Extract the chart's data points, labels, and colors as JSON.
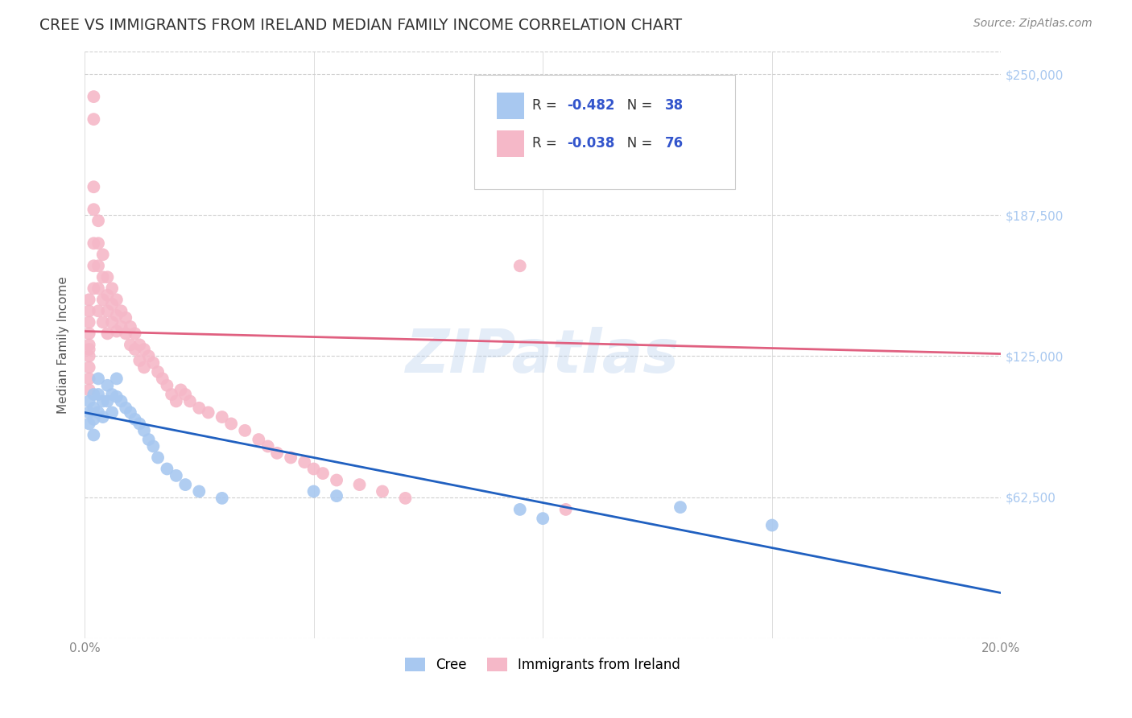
{
  "title": "CREE VS IMMIGRANTS FROM IRELAND MEDIAN FAMILY INCOME CORRELATION CHART",
  "source": "Source: ZipAtlas.com",
  "ylabel": "Median Family Income",
  "xlim": [
    0.0,
    0.2
  ],
  "ylim": [
    0,
    260000
  ],
  "yticks": [
    0,
    62500,
    125000,
    187500,
    250000
  ],
  "ytick_labels": [
    "",
    "$62,500",
    "$125,000",
    "$187,500",
    "$250,000"
  ],
  "xticks": [
    0.0,
    0.05,
    0.1,
    0.15,
    0.2
  ],
  "xtick_labels": [
    "0.0%",
    "",
    "",
    "",
    "20.0%"
  ],
  "background_color": "#ffffff",
  "grid_color": "#d0d0d0",
  "cree_color": "#a8c8f0",
  "ireland_color": "#f5b8c8",
  "cree_line_color": "#2060c0",
  "ireland_line_color": "#e06080",
  "legend_R_cree": "-0.482",
  "legend_N_cree": "38",
  "legend_R_ireland": "-0.038",
  "legend_N_ireland": "76",
  "cree_scatter_x": [
    0.001,
    0.001,
    0.001,
    0.002,
    0.002,
    0.002,
    0.002,
    0.003,
    0.003,
    0.003,
    0.004,
    0.004,
    0.005,
    0.005,
    0.006,
    0.006,
    0.007,
    0.007,
    0.008,
    0.009,
    0.01,
    0.011,
    0.012,
    0.013,
    0.014,
    0.015,
    0.016,
    0.018,
    0.02,
    0.022,
    0.025,
    0.03,
    0.05,
    0.055,
    0.095,
    0.1,
    0.13,
    0.15
  ],
  "cree_scatter_y": [
    105000,
    100000,
    95000,
    108000,
    102000,
    97000,
    90000,
    115000,
    108000,
    100000,
    105000,
    98000,
    112000,
    105000,
    108000,
    100000,
    115000,
    107000,
    105000,
    102000,
    100000,
    97000,
    95000,
    92000,
    88000,
    85000,
    80000,
    75000,
    72000,
    68000,
    65000,
    62000,
    65000,
    63000,
    57000,
    53000,
    58000,
    50000
  ],
  "ireland_scatter_x": [
    0.001,
    0.001,
    0.001,
    0.001,
    0.001,
    0.001,
    0.001,
    0.001,
    0.001,
    0.001,
    0.002,
    0.002,
    0.002,
    0.002,
    0.002,
    0.002,
    0.002,
    0.003,
    0.003,
    0.003,
    0.003,
    0.003,
    0.004,
    0.004,
    0.004,
    0.004,
    0.005,
    0.005,
    0.005,
    0.005,
    0.006,
    0.006,
    0.006,
    0.007,
    0.007,
    0.007,
    0.008,
    0.008,
    0.009,
    0.009,
    0.01,
    0.01,
    0.011,
    0.011,
    0.012,
    0.012,
    0.013,
    0.013,
    0.014,
    0.015,
    0.016,
    0.017,
    0.018,
    0.019,
    0.02,
    0.021,
    0.022,
    0.023,
    0.025,
    0.027,
    0.03,
    0.032,
    0.035,
    0.038,
    0.04,
    0.042,
    0.045,
    0.048,
    0.05,
    0.052,
    0.055,
    0.06,
    0.065,
    0.07,
    0.095,
    0.105
  ],
  "ireland_scatter_y": [
    130000,
    125000,
    120000,
    115000,
    110000,
    140000,
    145000,
    150000,
    135000,
    128000,
    240000,
    230000,
    200000,
    190000,
    175000,
    165000,
    155000,
    185000,
    175000,
    165000,
    155000,
    145000,
    170000,
    160000,
    150000,
    140000,
    160000,
    152000,
    145000,
    135000,
    155000,
    148000,
    140000,
    150000,
    143000,
    136000,
    145000,
    138000,
    142000,
    135000,
    138000,
    130000,
    135000,
    128000,
    130000,
    123000,
    128000,
    120000,
    125000,
    122000,
    118000,
    115000,
    112000,
    108000,
    105000,
    110000,
    108000,
    105000,
    102000,
    100000,
    98000,
    95000,
    92000,
    88000,
    85000,
    82000,
    80000,
    78000,
    75000,
    73000,
    70000,
    68000,
    65000,
    62000,
    165000,
    57000
  ],
  "cree_line_x": [
    0.0,
    0.2
  ],
  "cree_line_y": [
    100000,
    20000
  ],
  "ireland_line_x": [
    0.0,
    0.2
  ],
  "ireland_line_y": [
    136000,
    126000
  ]
}
